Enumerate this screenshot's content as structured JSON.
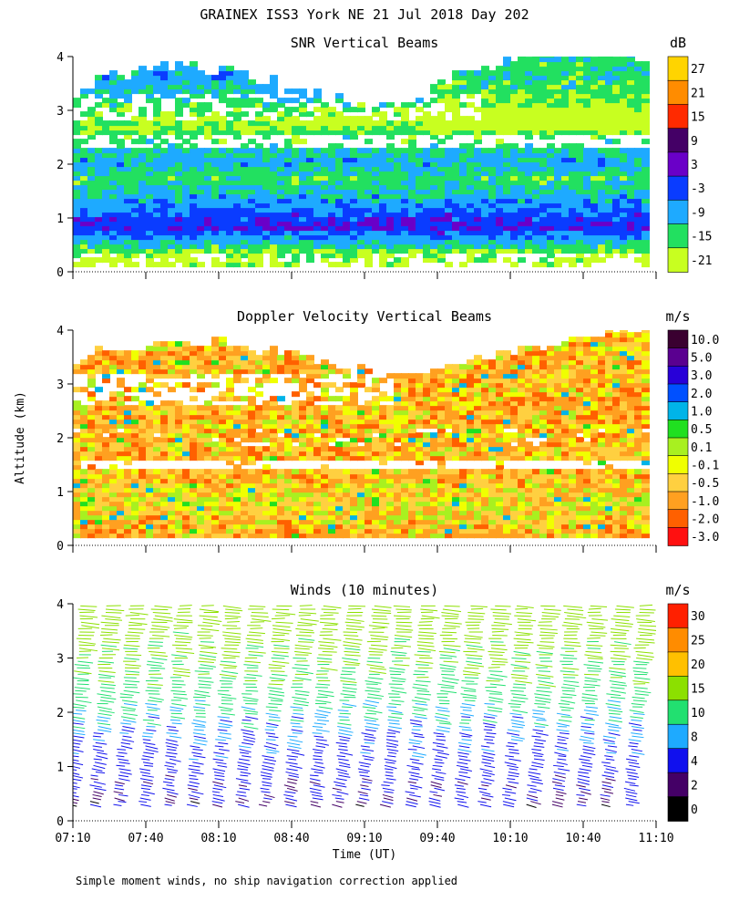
{
  "title": "GRAINEX ISS3 York NE  21 Jul 2018 Day 202",
  "ylabel": "Altitude (km)",
  "xlabel": "Time (UT)",
  "footnote": "Simple moment winds, no ship navigation correction applied",
  "x_ticks": [
    "07:10",
    "07:40",
    "08:10",
    "08:40",
    "09:10",
    "09:40",
    "10:10",
    "10:40",
    "11:10"
  ],
  "y_ticks": [
    "0",
    "1",
    "2",
    "3",
    "4"
  ],
  "chart_data": [
    {
      "type": "heatmap",
      "title": "SNR Vertical Beams",
      "units": "dB",
      "x_range": [
        "07:10",
        "11:10"
      ],
      "ylim": [
        0,
        4
      ],
      "colorbar_labels": [
        "27",
        "21",
        "15",
        "9",
        "3",
        "-3",
        "-9",
        "-15",
        "-21"
      ],
      "colors": [
        "#ffd400",
        "#ff8c00",
        "#ff2a00",
        "#440066",
        "#6a00c8",
        "#0a3cff",
        "#1eaaff",
        "#22e060",
        "#c8ff20"
      ],
      "altitude_profile": [
        {
          "alt_km": 0.2,
          "value": -21
        },
        {
          "alt_km": 0.5,
          "value": -12
        },
        {
          "alt_km": 0.8,
          "value": 0
        },
        {
          "alt_km": 1.0,
          "value": -3
        },
        {
          "alt_km": 1.3,
          "value": -9
        },
        {
          "alt_km": 1.7,
          "value": -15
        },
        {
          "alt_km": 2.0,
          "value": -9
        },
        {
          "alt_km": 2.4,
          "value": -15
        },
        {
          "alt_km": 2.8,
          "value": -21
        },
        {
          "alt_km": 3.2,
          "value": -12
        },
        {
          "alt_km": 3.6,
          "value": -9
        }
      ]
    },
    {
      "type": "heatmap",
      "title": "Doppler Velocity Vertical Beams",
      "units": "m/s",
      "x_range": [
        "07:10",
        "11:10"
      ],
      "ylim": [
        0,
        4
      ],
      "colorbar_labels": [
        "10.0",
        "5.0",
        "3.0",
        "2.0",
        "1.0",
        "0.5",
        "0.1",
        "-0.1",
        "-0.5",
        "-1.0",
        "-2.0",
        "-3.0"
      ],
      "colors": [
        "#3a0030",
        "#5a0090",
        "#2800d8",
        "#0050ff",
        "#00b4e8",
        "#20e020",
        "#a8f020",
        "#f0ff00",
        "#ffd040",
        "#ffa020",
        "#ff6000",
        "#ff1010"
      ],
      "altitude_profile": [
        {
          "alt_km": 0.3,
          "value": -0.5
        },
        {
          "alt_km": 0.8,
          "value": -0.1
        },
        {
          "alt_km": 1.2,
          "value": -0.5
        },
        {
          "alt_km": 2.0,
          "value": -0.5
        },
        {
          "alt_km": 2.8,
          "value": -0.5
        },
        {
          "alt_km": 3.3,
          "value": -0.5
        }
      ]
    },
    {
      "type": "scatter",
      "subtype": "wind_barbs",
      "title": "Winds (10 minutes)",
      "units": "m/s",
      "x_range": [
        "07:10",
        "11:10"
      ],
      "ylim": [
        0,
        4
      ],
      "colorbar_labels": [
        "30",
        "25",
        "20",
        "15",
        "10",
        "8",
        "4",
        "2",
        "0"
      ],
      "colors": [
        "#ff2000",
        "#ff8c00",
        "#ffc000",
        "#8ce000",
        "#22e070",
        "#1eaaff",
        "#1010ee",
        "#440066",
        "#000000"
      ],
      "profile_times": [
        "07:10",
        "07:20",
        "07:30",
        "07:40",
        "07:50",
        "08:00",
        "08:10",
        "08:20",
        "08:30",
        "08:40",
        "08:50",
        "09:00",
        "09:10",
        "09:20",
        "09:30",
        "09:40",
        "09:50",
        "10:00",
        "10:10",
        "10:20",
        "10:30",
        "10:40",
        "10:50",
        "11:00"
      ],
      "speed_profile": [
        {
          "alt_km": 0.2,
          "speed": 3
        },
        {
          "alt_km": 0.6,
          "speed": 5
        },
        {
          "alt_km": 1.0,
          "speed": 6
        },
        {
          "alt_km": 1.5,
          "speed": 7
        },
        {
          "alt_km": 2.0,
          "speed": 10
        },
        {
          "alt_km": 2.6,
          "speed": 14
        },
        {
          "alt_km": 3.2,
          "speed": 16
        },
        {
          "alt_km": 3.8,
          "speed": 18
        }
      ]
    }
  ]
}
